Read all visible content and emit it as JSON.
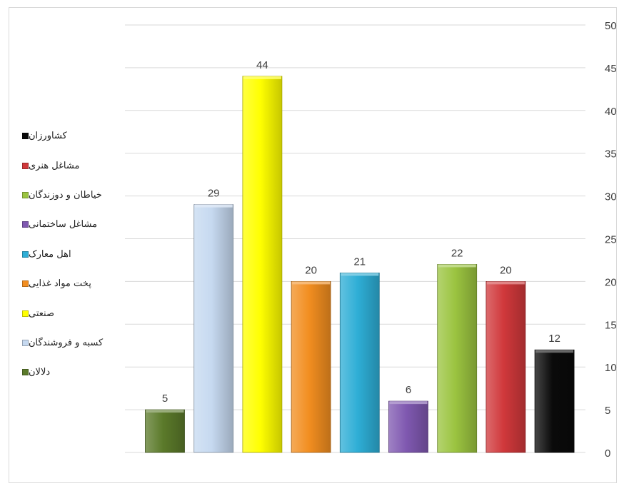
{
  "chart_data": {
    "type": "bar",
    "categories": [
      "دلالان",
      "کسبه و فروشندگان",
      "صنعتی",
      "پخت مواد غذایی",
      "اهل معارک",
      "مشاغل ساختمانی",
      "خیاطان و دوزندگان",
      "مشاغل هنری",
      "کشاورزان"
    ],
    "values": [
      5,
      29,
      44,
      20,
      21,
      6,
      22,
      20,
      12
    ],
    "colors": [
      "#5b7a2a",
      "#c6d9f0",
      "#ffff00",
      "#f28e20",
      "#2eaed6",
      "#7f58b0",
      "#9bc440",
      "#d0383b",
      "#0a0a0a"
    ],
    "data_labels": [
      "5",
      "29",
      "44",
      "20",
      "21",
      "6",
      "22",
      "20",
      "12"
    ],
    "ylim": [
      0,
      50
    ],
    "yticks": [
      "0",
      "5",
      "10",
      "15",
      "20",
      "25",
      "30",
      "35",
      "40",
      "45",
      "50"
    ],
    "y_axis_side": "right",
    "grid": true,
    "legend_position": "left",
    "legend_order": [
      "کشاورزان",
      "مشاغل هنری",
      "خیاطان و دوزندگان",
      "مشاغل ساختمانی",
      "اهل معارک",
      "پخت مواد غذایی",
      "صنعتی",
      "کسبه و فروشندگان",
      "دلالان"
    ],
    "legend_colors": [
      "#0a0a0a",
      "#d0383b",
      "#9bc440",
      "#7f58b0",
      "#2eaed6",
      "#f28e20",
      "#ffff00",
      "#c6d9f0",
      "#5b7a2a"
    ]
  }
}
